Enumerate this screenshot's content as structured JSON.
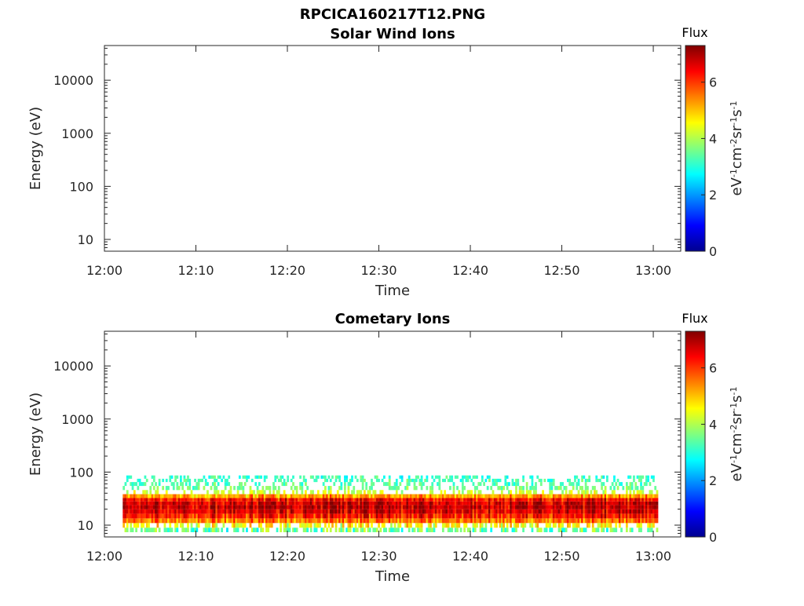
{
  "figure_title": "RPCICA160217T12.PNG",
  "chart_data": [
    {
      "type": "heatmap",
      "title": "Solar Wind Ions",
      "xlabel": "Time",
      "ylabel": "Energy (eV)",
      "x_tick_labels": [
        "12:00",
        "12:10",
        "12:20",
        "12:30",
        "12:40",
        "12:50",
        "13:00"
      ],
      "x_range_minutes": [
        0,
        63
      ],
      "y_scale": "log",
      "y_tick_labels": [
        "10",
        "100",
        "1000",
        "10000"
      ],
      "y_range": [
        6,
        45000
      ],
      "grid": false,
      "colorbar": {
        "title": "Flux",
        "label": "eV-1cm-2sr-1s-1",
        "label_base": [
          "eV",
          "cm",
          "sr",
          "s"
        ],
        "label_exp": [
          "-1",
          "-2",
          "-1",
          "-1"
        ],
        "ticks": [
          "0",
          "2",
          "4",
          "6"
        ],
        "range": [
          0,
          7.3
        ],
        "colormap": "jet"
      },
      "data_present": false
    },
    {
      "type": "heatmap",
      "title": "Cometary Ions",
      "xlabel": "Time",
      "ylabel": "Energy (eV)",
      "x_tick_labels": [
        "12:00",
        "12:10",
        "12:20",
        "12:30",
        "12:40",
        "12:50",
        "13:00"
      ],
      "x_range_minutes": [
        0,
        63
      ],
      "y_scale": "log",
      "y_tick_labels": [
        "10",
        "100",
        "1000",
        "10000"
      ],
      "y_range": [
        6,
        45000
      ],
      "grid": false,
      "colorbar": {
        "title": "Flux",
        "label": "eV-1cm-2sr-1s-1",
        "label_base": [
          "eV",
          "cm",
          "sr",
          "s"
        ],
        "label_exp": [
          "-1",
          "-2",
          "-1",
          "-1"
        ],
        "ticks": [
          "0",
          "2",
          "4",
          "6"
        ],
        "range": [
          0,
          7.3
        ],
        "colormap": "jet"
      },
      "data_present": true,
      "data_time_range_minutes": [
        2,
        60.5
      ],
      "energy_profile": {
        "energy_eV": [
          8,
          10,
          12,
          15,
          18,
          22,
          26,
          30,
          35,
          42,
          50,
          60,
          70,
          80
        ],
        "typical_flux": [
          3.5,
          4.5,
          5.5,
          6.2,
          6.6,
          6.8,
          6.7,
          6.3,
          5.2,
          4.2,
          3.6,
          3.3,
          3.2,
          3.1
        ]
      },
      "peak_flux_energy_eV": 22
    }
  ]
}
